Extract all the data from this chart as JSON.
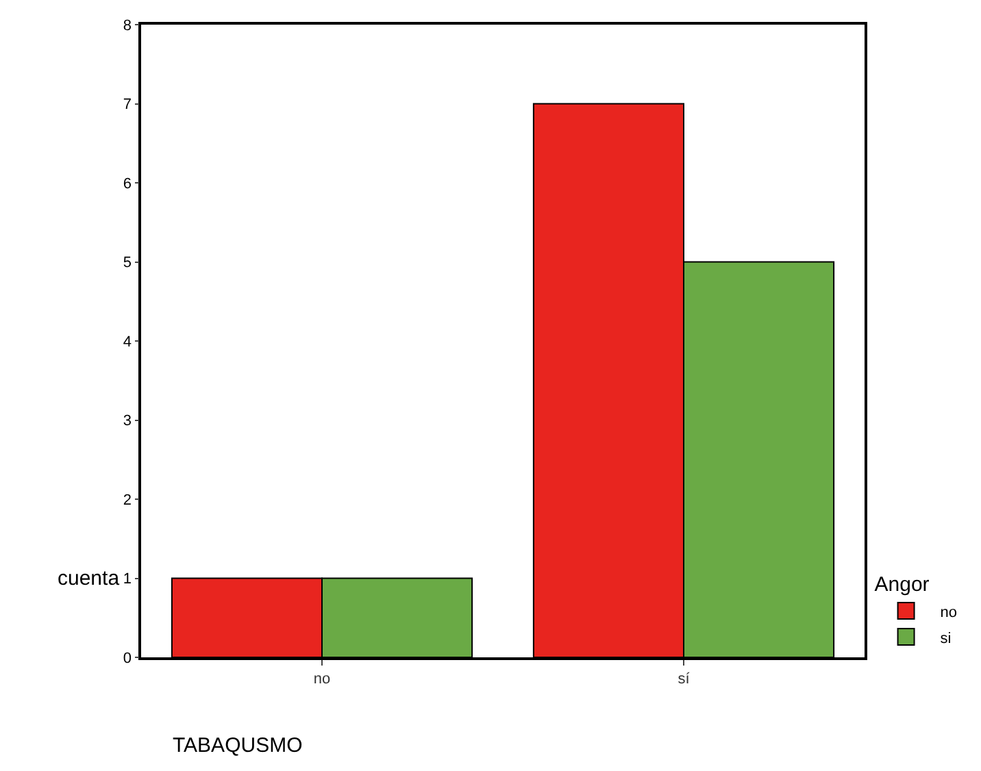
{
  "chart_data": {
    "type": "bar",
    "categories": [
      "no",
      "sí"
    ],
    "xlabel": "TABAQUSMO",
    "ylabel": "cuenta",
    "legend_title": "Angor",
    "series": [
      {
        "name": "no",
        "color": "#e8251f",
        "values": [
          1,
          7
        ]
      },
      {
        "name": "si",
        "color": "#6aaa45",
        "values": [
          1,
          5
        ]
      }
    ],
    "ylim": [
      0,
      8
    ],
    "yticks": [
      0,
      1,
      2,
      3,
      4,
      5,
      6,
      7,
      8
    ],
    "grid": false,
    "legend": "bottom right"
  }
}
